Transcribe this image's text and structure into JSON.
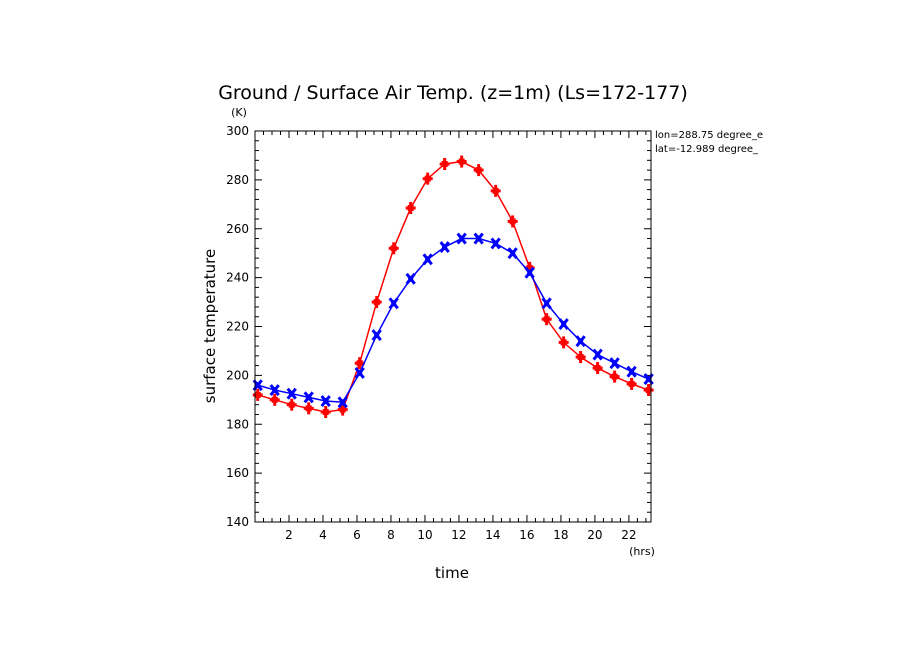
{
  "chart_data": {
    "type": "line",
    "title": "Ground / Surface Air Temp. (z=1m) (Ls=172-177)",
    "xlabel": "time",
    "ylabel": "surface temperature",
    "x_unit": "(hrs)",
    "y_unit": "(K)",
    "xlim": [
      0,
      23.3
    ],
    "ylim": [
      140,
      300
    ],
    "xticks": [
      2,
      4,
      6,
      8,
      10,
      12,
      14,
      16,
      18,
      20,
      22
    ],
    "yticks": [
      140,
      160,
      180,
      200,
      220,
      240,
      260,
      280,
      300
    ],
    "annotations": [
      "lon=288.75 degree_e",
      "lat=-12.989 degree_"
    ],
    "x": [
      0.16,
      1.16,
      2.16,
      3.16,
      4.16,
      5.16,
      6.16,
      7.16,
      8.16,
      9.16,
      10.16,
      11.16,
      12.16,
      13.16,
      14.16,
      15.16,
      16.16,
      17.16,
      18.16,
      19.16,
      20.16,
      21.16,
      22.16,
      23.16
    ],
    "series": [
      {
        "color": "#ff0000",
        "marker": "plus",
        "values": [
          192,
          190,
          188,
          186.5,
          185,
          186,
          205,
          230,
          252,
          268.5,
          280.5,
          286.5,
          287.5,
          284,
          275.5,
          263,
          244,
          223,
          213.5,
          207.5,
          203,
          199.5,
          196.5,
          194
        ]
      },
      {
        "color": "#0000ff",
        "marker": "x",
        "values": [
          196,
          194,
          192.5,
          191,
          189.5,
          189,
          201,
          216.5,
          229.5,
          239.5,
          247.5,
          252.5,
          256,
          256,
          254,
          250,
          242,
          229.5,
          221,
          214,
          208.5,
          205,
          201.5,
          198.5
        ]
      }
    ]
  }
}
